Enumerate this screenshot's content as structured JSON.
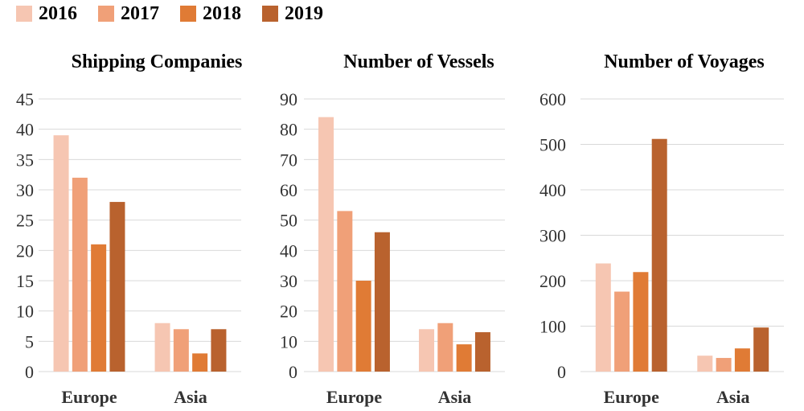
{
  "legend": {
    "items": [
      {
        "label": "2016",
        "color": "#F6C6B2"
      },
      {
        "label": "2017",
        "color": "#F0A078"
      },
      {
        "label": "2018",
        "color": "#E07B35"
      },
      {
        "label": "2019",
        "color": "#B9622E"
      }
    ]
  },
  "chart_data": [
    {
      "type": "bar",
      "title": "Shipping Companies",
      "categories": [
        "Europe",
        "Asia"
      ],
      "ylim": [
        0,
        45
      ],
      "yticks": [
        "0",
        "5",
        "10",
        "15",
        "20",
        "25",
        "30",
        "35",
        "40",
        "45"
      ],
      "series": [
        {
          "name": "2016",
          "values": [
            39,
            8
          ]
        },
        {
          "name": "2017",
          "values": [
            32,
            7
          ]
        },
        {
          "name": "2018",
          "values": [
            21,
            3
          ]
        },
        {
          "name": "2019",
          "values": [
            28,
            7
          ]
        }
      ]
    },
    {
      "type": "bar",
      "title": "Number of Vessels",
      "categories": [
        "Europe",
        "Asia"
      ],
      "ylim": [
        0,
        90
      ],
      "yticks": [
        "0",
        "10",
        "20",
        "30",
        "40",
        "50",
        "60",
        "70",
        "80",
        "90"
      ],
      "series": [
        {
          "name": "2016",
          "values": [
            84,
            14
          ]
        },
        {
          "name": "2017",
          "values": [
            53,
            16
          ]
        },
        {
          "name": "2018",
          "values": [
            30,
            9
          ]
        },
        {
          "name": "2019",
          "values": [
            46,
            13
          ]
        }
      ]
    },
    {
      "type": "bar",
      "title": "Number of Voyages",
      "categories": [
        "Europe",
        "Asia"
      ],
      "ylim": [
        0,
        600
      ],
      "yticks": [
        "0",
        "100",
        "200",
        "300",
        "400",
        "500",
        "600"
      ],
      "series": [
        {
          "name": "2016",
          "values": [
            238,
            35
          ]
        },
        {
          "name": "2017",
          "values": [
            176,
            30
          ]
        },
        {
          "name": "2018",
          "values": [
            219,
            51
          ]
        },
        {
          "name": "2019",
          "values": [
            512,
            97
          ]
        }
      ]
    }
  ]
}
